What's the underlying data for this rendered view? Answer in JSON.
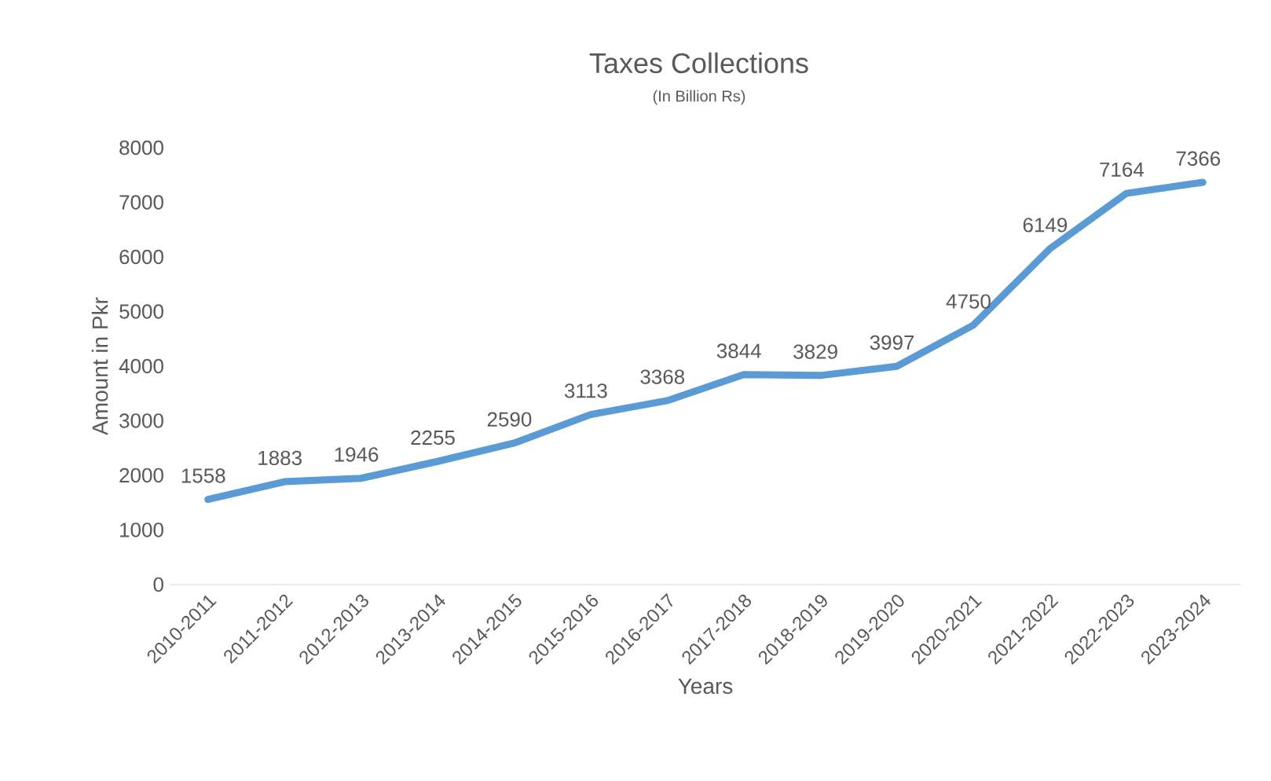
{
  "chart_data": {
    "type": "line",
    "title": "Taxes Collections",
    "subtitle": "(In Billion Rs)",
    "xlabel": "Years",
    "ylabel": "Amount in Pkr",
    "categories": [
      "2010-2011",
      "2011-2012",
      "2012-2013",
      "2013-2014",
      "2014-2015",
      "2015-2016",
      "2016-2017",
      "2017-2018",
      "2018-2019",
      "2019-2020",
      "2020-2021",
      "2021-2022",
      "2022-2023",
      "2023-2024"
    ],
    "values": [
      1558,
      1883,
      1946,
      2255,
      2590,
      3113,
      3368,
      3844,
      3829,
      3997,
      4750,
      6149,
      7164,
      7366
    ],
    "color": "#5b9bd5",
    "ylim": [
      0,
      8000
    ],
    "yticks": [
      0,
      1000,
      2000,
      3000,
      4000,
      5000,
      6000,
      7000,
      8000
    ],
    "grid": false,
    "marker": "none",
    "line_style": "solid",
    "data_labels": true
  }
}
